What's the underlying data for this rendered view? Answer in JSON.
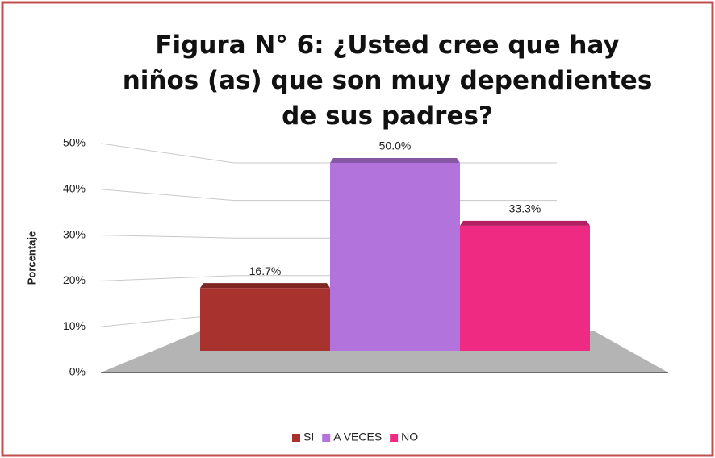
{
  "chart_data": {
    "type": "bar3d",
    "title": "Figura N° 6: ¿Usted cree que hay niños (as) que son muy dependientes de sus padres?",
    "y_label": "Porcentaje",
    "categories": [
      "SI",
      "A VECES",
      "NO"
    ],
    "values": [
      16.7,
      50.0,
      33.3
    ],
    "value_labels": [
      "16.7%",
      "50.0%",
      "33.3%"
    ],
    "colors": [
      "#a8322e",
      "#b274dc",
      "#ee2a82"
    ],
    "ylim": [
      0,
      50
    ],
    "yticks": [
      {
        "value": 0,
        "label": "0%"
      },
      {
        "value": 10,
        "label": "10%"
      },
      {
        "value": 20,
        "label": "20%"
      },
      {
        "value": 30,
        "label": "30%"
      },
      {
        "value": 40,
        "label": "40%"
      },
      {
        "value": 50,
        "label": "50%"
      }
    ],
    "grid": true,
    "legend": "bottom"
  }
}
